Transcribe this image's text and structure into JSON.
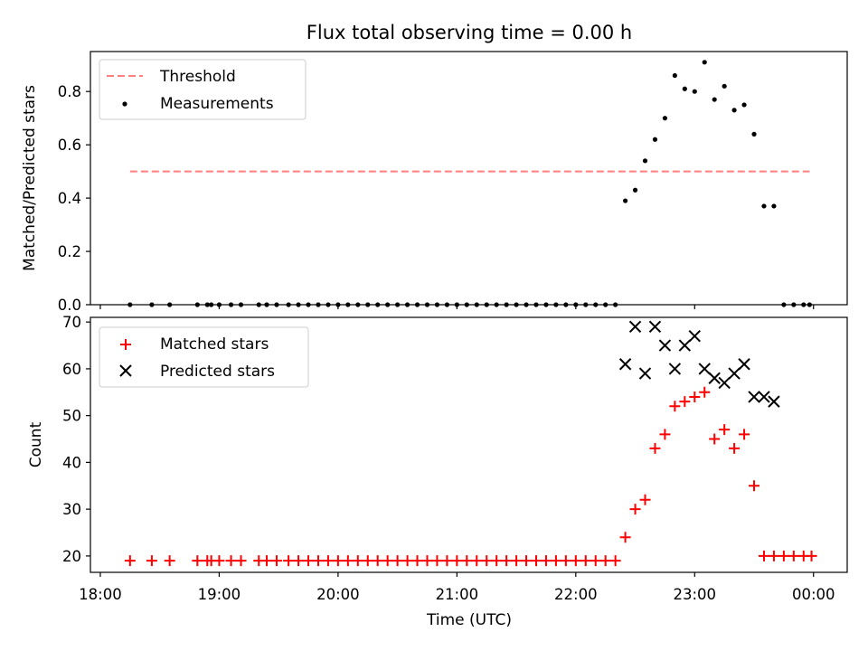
{
  "figure": {
    "title": "Flux total observing time = 0.00 h"
  },
  "chart_data": [
    {
      "type": "scatter",
      "panel": "top",
      "title": "Flux total observing time = 0.00 h",
      "xlabel": "",
      "ylabel": "Matched/Predicted stars",
      "xlim": [
        "17:55",
        "00:17"
      ],
      "ylim": [
        0,
        0.95
      ],
      "yticks": [
        "0.0",
        "0.2",
        "0.4",
        "0.6",
        "0.8"
      ],
      "legend_position": "upper-left",
      "legend": [
        "Threshold",
        "Measurements"
      ],
      "threshold": {
        "name": "Threshold",
        "value": 0.5,
        "from": "18:15",
        "to": "23:58",
        "color": "#ff7f7f",
        "style": "dashed"
      },
      "series": [
        {
          "name": "Measurements",
          "color": "#000000",
          "marker": "dot",
          "points": [
            [
              "18:15",
              0
            ],
            [
              "18:26",
              0
            ],
            [
              "18:35",
              0
            ],
            [
              "18:49",
              0
            ],
            [
              "18:54",
              0
            ],
            [
              "18:56",
              0
            ],
            [
              "19:00",
              0
            ],
            [
              "19:06",
              0
            ],
            [
              "19:11",
              0
            ],
            [
              "19:20",
              0
            ],
            [
              "19:24",
              0
            ],
            [
              "19:29",
              0
            ],
            [
              "19:35",
              0
            ],
            [
              "19:40",
              0
            ],
            [
              "19:45",
              0
            ],
            [
              "19:50",
              0
            ],
            [
              "19:55",
              0
            ],
            [
              "20:00",
              0
            ],
            [
              "20:05",
              0
            ],
            [
              "20:10",
              0
            ],
            [
              "20:15",
              0
            ],
            [
              "20:20",
              0
            ],
            [
              "20:25",
              0
            ],
            [
              "20:30",
              0
            ],
            [
              "20:35",
              0
            ],
            [
              "20:40",
              0
            ],
            [
              "20:45",
              0
            ],
            [
              "20:50",
              0
            ],
            [
              "20:55",
              0
            ],
            [
              "21:00",
              0
            ],
            [
              "21:05",
              0
            ],
            [
              "21:10",
              0
            ],
            [
              "21:15",
              0
            ],
            [
              "21:20",
              0
            ],
            [
              "21:25",
              0
            ],
            [
              "21:30",
              0
            ],
            [
              "21:35",
              0
            ],
            [
              "21:40",
              0
            ],
            [
              "21:45",
              0
            ],
            [
              "21:50",
              0
            ],
            [
              "21:55",
              0
            ],
            [
              "22:00",
              0
            ],
            [
              "22:05",
              0
            ],
            [
              "22:10",
              0
            ],
            [
              "22:15",
              0
            ],
            [
              "22:20",
              0
            ],
            [
              "22:25",
              0.39
            ],
            [
              "22:30",
              0.43
            ],
            [
              "22:35",
              0.54
            ],
            [
              "22:40",
              0.62
            ],
            [
              "22:45",
              0.7
            ],
            [
              "22:50",
              0.86
            ],
            [
              "22:55",
              0.81
            ],
            [
              "23:00",
              0.8
            ],
            [
              "23:05",
              0.91
            ],
            [
              "23:10",
              0.77
            ],
            [
              "23:15",
              0.82
            ],
            [
              "23:20",
              0.73
            ],
            [
              "23:25",
              0.75
            ],
            [
              "23:30",
              0.64
            ],
            [
              "23:35",
              0.37
            ],
            [
              "23:40",
              0.37
            ],
            [
              "23:45",
              0
            ],
            [
              "23:50",
              0
            ],
            [
              "23:55",
              0
            ],
            [
              "23:58",
              0
            ]
          ]
        }
      ]
    },
    {
      "type": "scatter",
      "panel": "bottom",
      "title": "",
      "xlabel": "Time (UTC)",
      "ylabel": "Count",
      "xlim": [
        "17:55",
        "00:17"
      ],
      "ylim": [
        16.5,
        71
      ],
      "xticks": [
        "18:00",
        "19:00",
        "20:00",
        "21:00",
        "22:00",
        "23:00",
        "00:00"
      ],
      "yticks": [
        "20",
        "30",
        "40",
        "50",
        "60",
        "70"
      ],
      "legend_position": "upper-left",
      "legend": [
        "Matched stars",
        "Predicted stars"
      ],
      "series": [
        {
          "name": "Matched stars",
          "color": "#ff0000",
          "marker": "plus",
          "points": [
            [
              "18:15",
              19
            ],
            [
              "18:26",
              19
            ],
            [
              "18:35",
              19
            ],
            [
              "18:49",
              19
            ],
            [
              "18:54",
              19
            ],
            [
              "18:56",
              19
            ],
            [
              "19:00",
              19
            ],
            [
              "19:06",
              19
            ],
            [
              "19:11",
              19
            ],
            [
              "19:20",
              19
            ],
            [
              "19:24",
              19
            ],
            [
              "19:29",
              19
            ],
            [
              "19:35",
              19
            ],
            [
              "19:40",
              19
            ],
            [
              "19:45",
              19
            ],
            [
              "19:50",
              19
            ],
            [
              "19:55",
              19
            ],
            [
              "20:00",
              19
            ],
            [
              "20:05",
              19
            ],
            [
              "20:10",
              19
            ],
            [
              "20:15",
              19
            ],
            [
              "20:20",
              19
            ],
            [
              "20:25",
              19
            ],
            [
              "20:30",
              19
            ],
            [
              "20:35",
              19
            ],
            [
              "20:40",
              19
            ],
            [
              "20:45",
              19
            ],
            [
              "20:50",
              19
            ],
            [
              "20:55",
              19
            ],
            [
              "21:00",
              19
            ],
            [
              "21:05",
              19
            ],
            [
              "21:10",
              19
            ],
            [
              "21:15",
              19
            ],
            [
              "21:20",
              19
            ],
            [
              "21:25",
              19
            ],
            [
              "21:30",
              19
            ],
            [
              "21:35",
              19
            ],
            [
              "21:40",
              19
            ],
            [
              "21:45",
              19
            ],
            [
              "21:50",
              19
            ],
            [
              "21:55",
              19
            ],
            [
              "22:00",
              19
            ],
            [
              "22:05",
              19
            ],
            [
              "22:10",
              19
            ],
            [
              "22:15",
              19
            ],
            [
              "22:20",
              19
            ],
            [
              "22:25",
              24
            ],
            [
              "22:30",
              30
            ],
            [
              "22:35",
              32
            ],
            [
              "22:40",
              43
            ],
            [
              "22:45",
              46
            ],
            [
              "22:50",
              52
            ],
            [
              "22:55",
              53
            ],
            [
              "23:00",
              54
            ],
            [
              "23:05",
              55
            ],
            [
              "23:10",
              45
            ],
            [
              "23:15",
              47
            ],
            [
              "23:20",
              43
            ],
            [
              "23:25",
              46
            ],
            [
              "23:30",
              35
            ],
            [
              "23:35",
              20
            ],
            [
              "23:40",
              20
            ],
            [
              "23:45",
              20
            ],
            [
              "23:50",
              20
            ],
            [
              "23:55",
              20
            ],
            [
              "23:59",
              20
            ]
          ]
        },
        {
          "name": "Predicted stars",
          "color": "#000000",
          "marker": "x",
          "points": [
            [
              "22:25",
              61
            ],
            [
              "22:30",
              69
            ],
            [
              "22:35",
              59
            ],
            [
              "22:40",
              69
            ],
            [
              "22:45",
              65
            ],
            [
              "22:50",
              60
            ],
            [
              "22:55",
              65
            ],
            [
              "23:00",
              67
            ],
            [
              "23:05",
              60
            ],
            [
              "23:10",
              58
            ],
            [
              "23:15",
              57
            ],
            [
              "23:20",
              59
            ],
            [
              "23:25",
              61
            ],
            [
              "23:30",
              54
            ],
            [
              "23:35",
              54
            ],
            [
              "23:40",
              53
            ]
          ]
        }
      ]
    }
  ]
}
